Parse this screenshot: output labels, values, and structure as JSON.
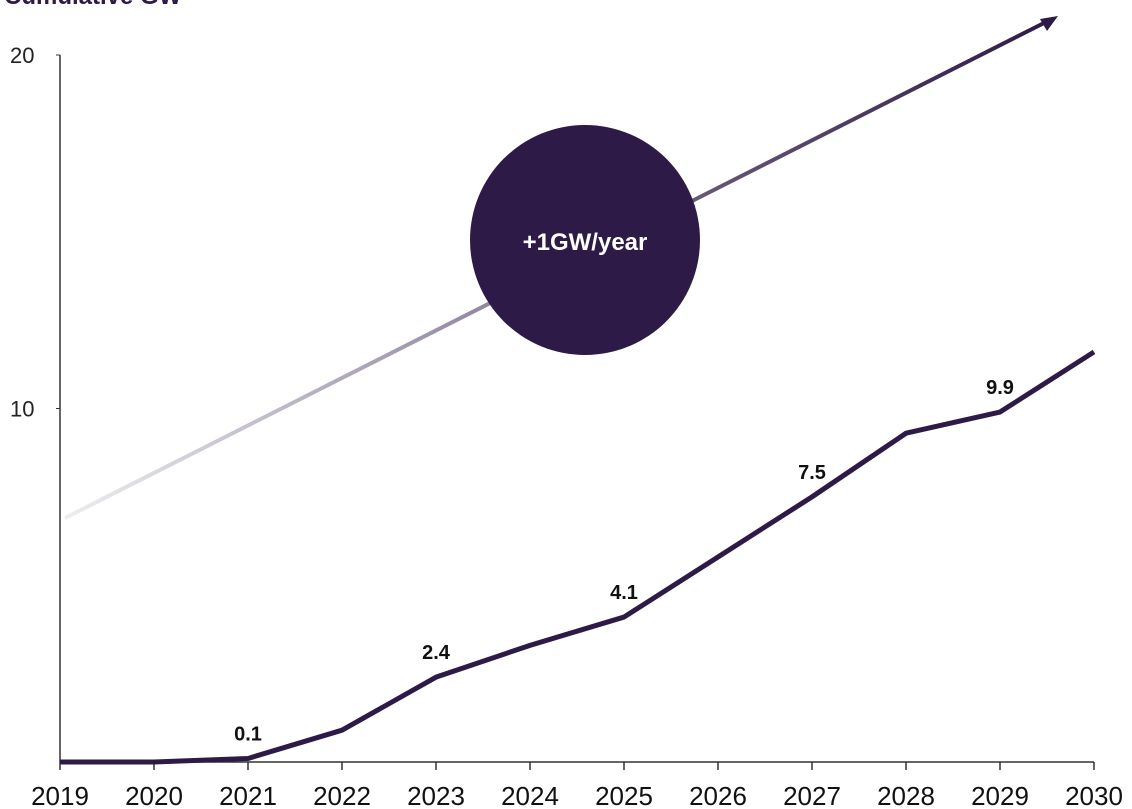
{
  "chart_data": {
    "type": "line",
    "title": "Cumulative GW",
    "categories": [
      "2019",
      "2020",
      "2021",
      "2022",
      "2023",
      "2024",
      "2025",
      "2026",
      "2027",
      "2028",
      "2029",
      "2030"
    ],
    "values": [
      0,
      0,
      0.1,
      0.9,
      2.4,
      3.3,
      4.1,
      5.8,
      7.5,
      9.3,
      9.9,
      11.6
    ],
    "value_labels": [
      null,
      null,
      "0.1",
      null,
      "2.4",
      null,
      "4.1",
      null,
      "7.5",
      null,
      "9.9",
      null
    ],
    "color": "#2e1a47",
    "ylim": [
      0,
      20
    ],
    "yticks": [
      10,
      20
    ],
    "grid": false,
    "annotation": "+1GW/year"
  }
}
